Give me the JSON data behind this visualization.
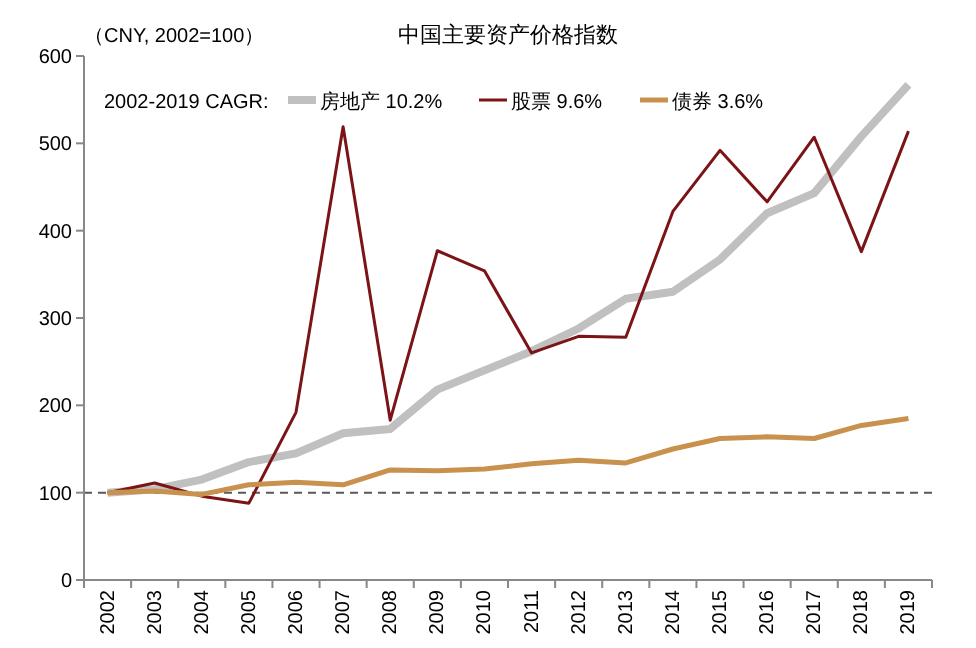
{
  "chart_data": {
    "type": "line",
    "title": "中国主要资产价格指数",
    "annotations": [
      "（CNY, 2002=100）"
    ],
    "legend_title": "2002-2019 CAGR:",
    "legend": "top",
    "grid": false,
    "categories": [
      "2002",
      "2003",
      "2004",
      "2005",
      "2006",
      "2007",
      "2008",
      "2009",
      "2010",
      "2011",
      "2012",
      "2013",
      "2014",
      "2015",
      "2016",
      "2017",
      "2018",
      "2019"
    ],
    "ylim": [
      0,
      600
    ],
    "yticks": [
      0,
      100,
      200,
      300,
      400,
      500,
      600
    ],
    "ref_lines": [
      {
        "axis": "y",
        "value": 100,
        "color": "#595959",
        "line_style": "dashed"
      }
    ],
    "series": [
      {
        "name": "房地产 10.2%",
        "color": "#c0c0c0",
        "values": [
          100,
          104,
          115,
          135,
          145,
          168,
          173,
          218,
          240,
          262,
          288,
          322,
          330,
          367,
          420,
          443,
          508,
          567
        ]
      },
      {
        "name": "股票 9.6%",
        "color": "#7b1416",
        "values": [
          100,
          111,
          96,
          88,
          192,
          519,
          183,
          377,
          354,
          260,
          279,
          278,
          422,
          492,
          433,
          507,
          376,
          514
        ]
      },
      {
        "name": "债券 3.6%",
        "color": "#c8924e",
        "values": [
          100,
          102,
          98,
          109,
          112,
          109,
          126,
          125,
          127,
          133,
          137,
          134,
          150,
          162,
          164,
          162,
          177,
          185
        ]
      }
    ]
  }
}
